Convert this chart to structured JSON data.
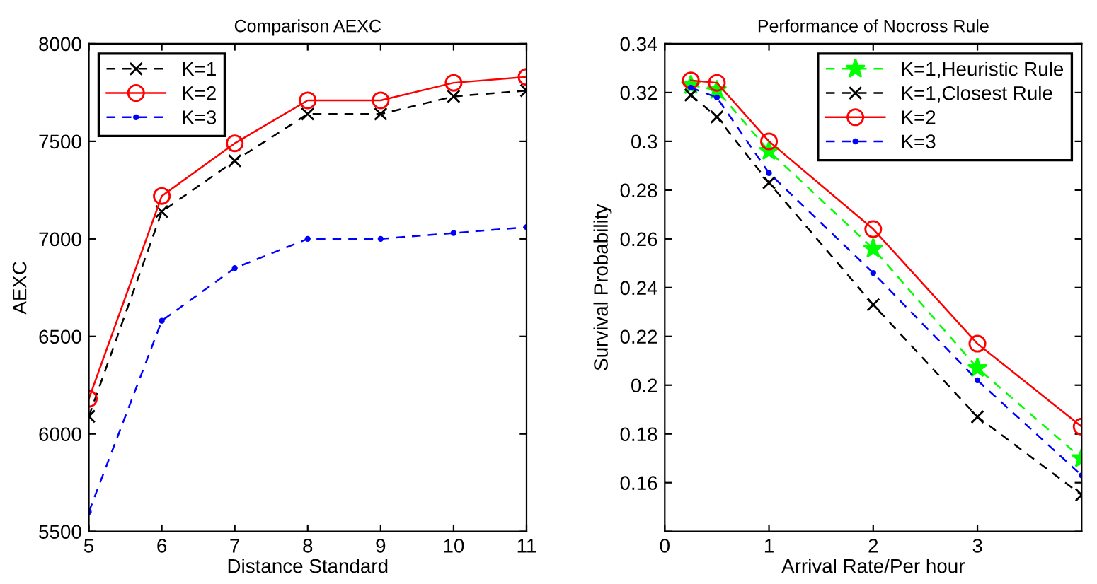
{
  "chart_data": [
    {
      "type": "line",
      "title": "Comparison AEXC",
      "xlabel": "Distance Standard",
      "ylabel": "AEXC",
      "x": [
        5,
        6,
        7,
        8,
        9,
        10,
        11
      ],
      "xlim": [
        5,
        11
      ],
      "xticks": [
        5,
        6,
        7,
        8,
        9,
        10,
        11
      ],
      "ylim": [
        5500,
        8000
      ],
      "yticks": [
        5500,
        6000,
        6500,
        7000,
        7500,
        8000
      ],
      "grid": false,
      "legend": "top left",
      "series": [
        {
          "name": "K=1",
          "color": "#000000",
          "marker": "cross",
          "line_style": "dashed",
          "values": [
            6090,
            7140,
            7400,
            7640,
            7640,
            7730,
            7760
          ]
        },
        {
          "name": "K=2",
          "color": "#ff0000",
          "marker": "circle",
          "line_style": "solid",
          "values": [
            6180,
            7220,
            7490,
            7710,
            7710,
            7800,
            7830
          ]
        },
        {
          "name": "K=3",
          "color": "#0000ff",
          "marker": "point",
          "line_style": "dashed",
          "values": [
            5600,
            6580,
            6850,
            7000,
            7000,
            7030,
            7060
          ]
        }
      ]
    },
    {
      "type": "line",
      "title": "Performance of Nocross Rule",
      "xlabel": "Arrival Rate/Per hour",
      "ylabel": "Survival Probability",
      "x": [
        0.25,
        0.5,
        1,
        2,
        3,
        4
      ],
      "xlim": [
        0,
        4
      ],
      "xticks": [
        0,
        1,
        2,
        3
      ],
      "ylim": [
        0.14,
        0.34
      ],
      "yticks": [
        {
          "value": 0.14,
          "label": null
        },
        0.16,
        0.18,
        {
          "value": 0.2,
          "label": "0.2"
        },
        0.22,
        0.24,
        0.26,
        0.28,
        {
          "value": 0.3,
          "label": "0.3"
        },
        0.32,
        0.34
      ],
      "grid": false,
      "legend": "top right",
      "series": [
        {
          "name": "K=1,Heuristic Rule",
          "color": "#00ff00",
          "marker": "star",
          "line_style": "dashed",
          "values": [
            0.323,
            0.321,
            0.296,
            0.256,
            0.207,
            0.17
          ]
        },
        {
          "name": "K=1,Closest Rule",
          "color": "#000000",
          "marker": "cross",
          "line_style": "dashed",
          "values": [
            0.319,
            0.31,
            0.283,
            0.233,
            0.187,
            0.155
          ]
        },
        {
          "name": "K=2",
          "color": "#ff0000",
          "marker": "circle",
          "line_style": "solid",
          "values": [
            0.325,
            0.324,
            0.3,
            0.264,
            0.217,
            0.183
          ]
        },
        {
          "name": "K=3",
          "color": "#0000ff",
          "marker": "point",
          "line_style": "dashed",
          "values": [
            0.322,
            0.318,
            0.287,
            0.246,
            0.202,
            0.163
          ]
        }
      ]
    }
  ]
}
